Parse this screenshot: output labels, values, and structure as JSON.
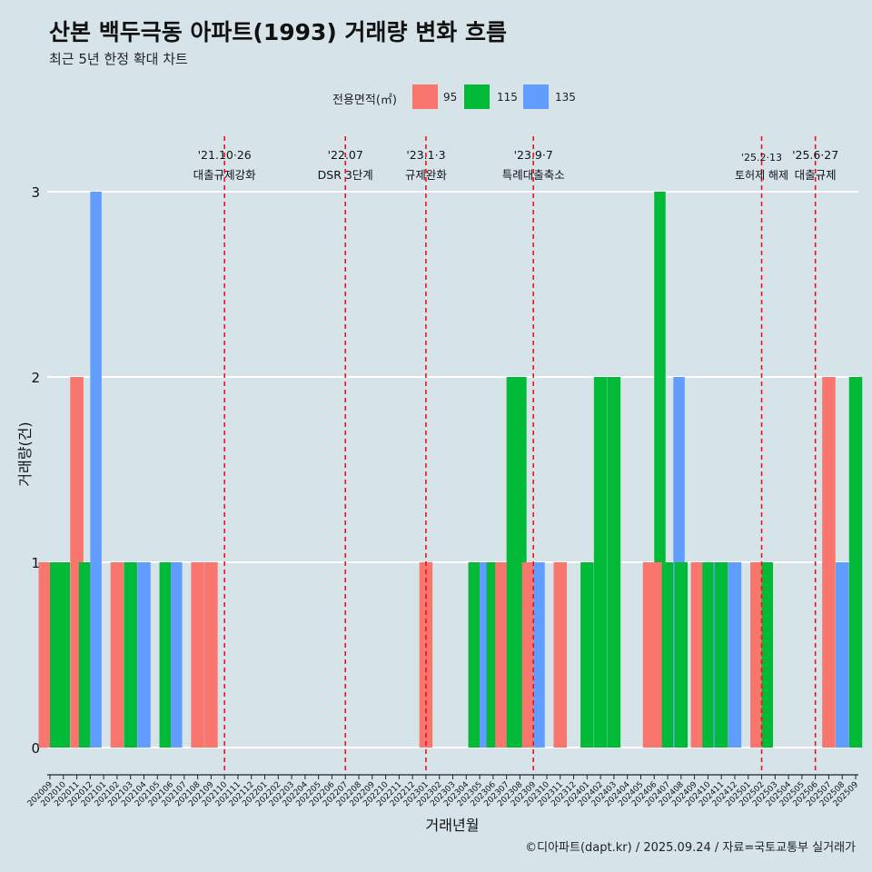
{
  "title": "산본 백두극동 아파트(1993) 거래량 변화 흐름",
  "subtitle": "최근 5년 한정 확대 차트",
  "caption": "©디아파트(dapt.kr) / 2025.09.24 / 자료=국토교통부 실거래가",
  "legend": {
    "title": "전용면적(㎡)",
    "items": [
      {
        "label": "95",
        "color": "#f8766d"
      },
      {
        "label": "115",
        "color": "#00ba38"
      },
      {
        "label": "135",
        "color": "#619cff"
      }
    ]
  },
  "chart_data": {
    "type": "bar",
    "title": "산본 백두극동 아파트(1993) 거래량 변화 흐름",
    "xlabel": "거래년월",
    "ylabel": "거래량(건)",
    "ylim": [
      0,
      3
    ],
    "yticks": [
      "0",
      "1",
      "2",
      "3"
    ],
    "categories": [
      "202009",
      "202010",
      "202011",
      "202012",
      "202101",
      "202102",
      "202103",
      "202104",
      "202105",
      "202106",
      "202107",
      "202108",
      "202109",
      "202110",
      "202111",
      "202112",
      "202201",
      "202202",
      "202203",
      "202204",
      "202205",
      "202206",
      "202207",
      "202208",
      "202209",
      "202210",
      "202211",
      "202212",
      "202301",
      "202302",
      "202303",
      "202304",
      "202305",
      "202306",
      "202307",
      "202308",
      "202309",
      "202310",
      "202311",
      "202312",
      "202401",
      "202402",
      "202403",
      "202404",
      "202405",
      "202406",
      "202407",
      "202408",
      "202409",
      "202410",
      "202411",
      "202412",
      "202501",
      "202502",
      "202503",
      "202504",
      "202505",
      "202506",
      "202507",
      "202508",
      "202509"
    ],
    "series": [
      {
        "name": "95",
        "values": [
          1,
          0,
          2,
          0,
          0,
          1,
          0,
          0,
          0,
          0,
          0,
          1,
          1,
          0,
          0,
          0,
          0,
          0,
          0,
          0,
          0,
          0,
          0,
          0,
          0,
          0,
          0,
          0,
          1,
          0,
          0,
          0,
          0,
          0,
          1,
          0,
          1,
          0,
          1,
          0,
          0,
          0,
          0,
          0,
          0,
          1,
          1,
          0,
          0,
          1,
          0,
          0,
          0,
          1,
          0,
          0,
          0,
          0,
          2,
          0,
          0
        ]
      },
      {
        "name": "115",
        "values": [
          1,
          1,
          0,
          1,
          0,
          0,
          1,
          0,
          0,
          1,
          0,
          0,
          0,
          0,
          0,
          0,
          0,
          0,
          0,
          0,
          0,
          0,
          0,
          0,
          0,
          0,
          0,
          0,
          0,
          0,
          0,
          0,
          1,
          1,
          2,
          2,
          0,
          0,
          0,
          0,
          1,
          2,
          2,
          0,
          0,
          3,
          1,
          1,
          0,
          1,
          1,
          0,
          0,
          1,
          0,
          0,
          0,
          0,
          0,
          0,
          2
        ]
      },
      {
        "name": "135",
        "values": [
          0,
          0,
          0,
          3,
          0,
          0,
          0,
          1,
          0,
          1,
          0,
          0,
          0,
          0,
          0,
          0,
          0,
          0,
          0,
          0,
          0,
          0,
          0,
          0,
          0,
          0,
          0,
          0,
          0,
          0,
          0,
          0,
          1,
          0,
          0,
          0,
          1,
          0,
          0,
          0,
          0,
          0,
          0,
          0,
          0,
          0,
          2,
          0,
          0,
          1,
          0,
          1,
          0,
          0,
          0,
          0,
          0,
          0,
          0,
          1,
          0
        ]
      }
    ],
    "annotations": [
      {
        "date": "'21.10·26",
        "label": "대출규제강화",
        "category": "202110"
      },
      {
        "date": "'22.07",
        "label": "DSR 3단계",
        "category": "202207"
      },
      {
        "date": "'23.1·3",
        "label": "규제완화",
        "category": "202301"
      },
      {
        "date": "'23.9·7",
        "label": "특례대출축소",
        "category": "202309"
      },
      {
        "date": "'25.2·13",
        "label": "토허제 해제",
        "category": "202502"
      },
      {
        "date": "'25.6·27",
        "label": "대출규제",
        "category": "202506"
      }
    ]
  }
}
